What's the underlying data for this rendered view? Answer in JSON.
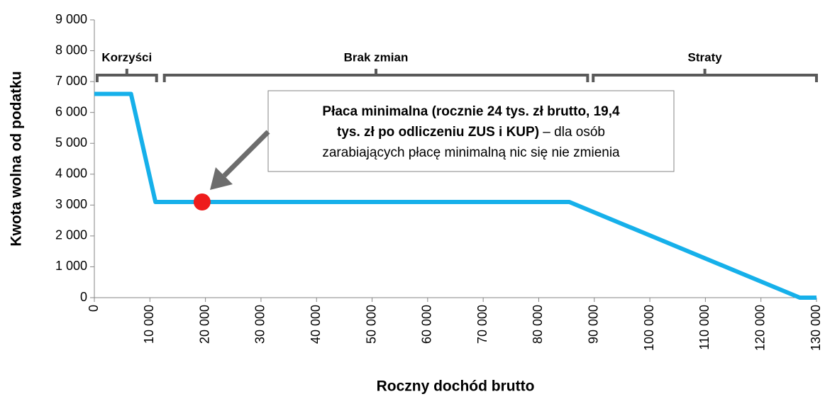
{
  "chart_data": {
    "type": "line",
    "x_label": "Roczny dochód brutto",
    "y_label": "Kwota wolna od podatku",
    "x": [
      0,
      6600,
      11000,
      85500,
      127000,
      130000
    ],
    "values": [
      6600,
      6600,
      3100,
      3100,
      0,
      0
    ],
    "color": "#16b0ea",
    "xlim": [
      0,
      130000
    ],
    "ylim": [
      0,
      9000
    ],
    "xticks": [
      0,
      {
        "value": 10000,
        "label": "10 000"
      },
      {
        "value": 20000,
        "label": "20 000"
      },
      {
        "value": 30000,
        "label": "30 000"
      },
      {
        "value": 40000,
        "label": "40 000"
      },
      {
        "value": 50000,
        "label": "50 000"
      },
      {
        "value": 60000,
        "label": "60 000"
      },
      {
        "value": 70000,
        "label": "70 000"
      },
      {
        "value": 80000,
        "label": "80 000"
      },
      {
        "value": 90000,
        "label": "90 000"
      },
      {
        "value": 100000,
        "label": "100 000"
      },
      {
        "value": 110000,
        "label": "110 000"
      },
      {
        "value": 120000,
        "label": "120 000"
      },
      {
        "value": 130000,
        "label": "130 000"
      }
    ],
    "yticks": [
      0,
      {
        "value": 1000,
        "label": "1 000"
      },
      {
        "value": 2000,
        "label": "2 000"
      },
      {
        "value": 3000,
        "label": "3 000"
      },
      {
        "value": 4000,
        "label": "4 000"
      },
      {
        "value": 5000,
        "label": "5 000"
      },
      {
        "value": 6000,
        "label": "6 000"
      },
      {
        "value": 7000,
        "label": "7 000"
      },
      {
        "value": 8000,
        "label": "8 000"
      },
      {
        "value": 9000,
        "label": "9 000"
      }
    ],
    "highlight": {
      "x": 19400,
      "y": 3100,
      "color": "#ee1c1c"
    },
    "brackets": [
      {
        "label": "Korzyści",
        "x": [
          500,
          11200
        ]
      },
      {
        "label": "Brak zmian",
        "x": [
          12600,
          88800
        ]
      },
      {
        "label": "Straty",
        "x": [
          89800,
          130000
        ]
      }
    ],
    "callout": {
      "lines": [
        [
          {
            "text": "Płaca minimalna (rocznie 24 tys. zł brutto, 19,4",
            "bold": true
          }
        ],
        [
          {
            "text": "tys. zł po odliczeniu ZUS i KUP)",
            "bold": true
          },
          {
            "text": " – dla osób",
            "bold": false
          }
        ],
        [
          {
            "text": "zarabiających płacę minimalną nic się nie zmienia",
            "bold": false
          }
        ]
      ]
    }
  }
}
